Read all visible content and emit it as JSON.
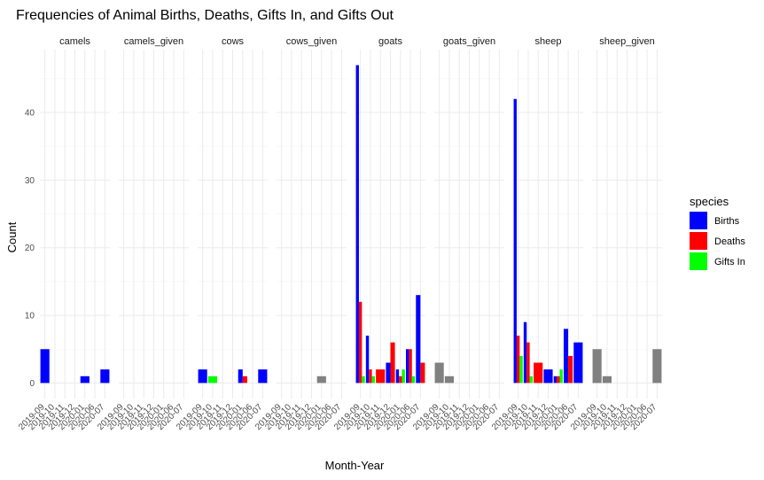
{
  "chart_data": {
    "type": "bar",
    "title": "Frequencies of Animal Births, Deaths, Gifts In, and Gifts Out",
    "xlabel": "Month-Year",
    "ylabel": "Count",
    "ylim": [
      0,
      47
    ],
    "yticks": [
      0,
      10,
      20,
      30,
      40
    ],
    "grid": true,
    "legend_position": "right",
    "x_categories": [
      "2019-09",
      "2019-10",
      "2019-11",
      "2019-12",
      "2020-01",
      "2020-06",
      "2020-07"
    ],
    "facets": [
      "camels",
      "camels_given",
      "cows",
      "cows_given",
      "goats",
      "goats_given",
      "sheep",
      "sheep_given"
    ],
    "legend": {
      "title": "species",
      "entries": [
        {
          "label": "Births",
          "color": "#0000ff"
        },
        {
          "label": "Deaths",
          "color": "#ff0000"
        },
        {
          "label": "Gifts In",
          "color": "#00ff00"
        }
      ]
    },
    "gifts_out_color": "#808080",
    "bars": [
      {
        "facet": "camels",
        "x": "2019-09",
        "type": "Births",
        "value": 5
      },
      {
        "facet": "camels",
        "x": "2020-01",
        "type": "Births",
        "value": 1
      },
      {
        "facet": "camels",
        "x": "2020-07",
        "type": "Births",
        "value": 2
      },
      {
        "facet": "cows",
        "x": "2019-09",
        "type": "Births",
        "value": 2
      },
      {
        "facet": "cows",
        "x": "2019-10",
        "type": "Gifts In",
        "value": 1
      },
      {
        "facet": "cows",
        "x": "2020-01",
        "type": "Births",
        "value": 2
      },
      {
        "facet": "cows",
        "x": "2020-01",
        "type": "Deaths",
        "value": 1
      },
      {
        "facet": "cows",
        "x": "2020-07",
        "type": "Births",
        "value": 2
      },
      {
        "facet": "cows_given",
        "x": "2020-01",
        "type": "Gifts Out",
        "value": 1
      },
      {
        "facet": "goats",
        "x": "2019-09",
        "type": "Births",
        "value": 47
      },
      {
        "facet": "goats",
        "x": "2019-09",
        "type": "Deaths",
        "value": 12
      },
      {
        "facet": "goats",
        "x": "2019-09",
        "type": "Gifts In",
        "value": 1
      },
      {
        "facet": "goats",
        "x": "2019-10",
        "type": "Births",
        "value": 7
      },
      {
        "facet": "goats",
        "x": "2019-10",
        "type": "Deaths",
        "value": 2
      },
      {
        "facet": "goats",
        "x": "2019-10",
        "type": "Gifts In",
        "value": 1
      },
      {
        "facet": "goats",
        "x": "2019-11",
        "type": "Deaths",
        "value": 2
      },
      {
        "facet": "goats",
        "x": "2019-12",
        "type": "Births",
        "value": 3
      },
      {
        "facet": "goats",
        "x": "2019-12",
        "type": "Deaths",
        "value": 6
      },
      {
        "facet": "goats",
        "x": "2020-01",
        "type": "Births",
        "value": 2
      },
      {
        "facet": "goats",
        "x": "2020-01",
        "type": "Deaths",
        "value": 1
      },
      {
        "facet": "goats",
        "x": "2020-01",
        "type": "Gifts In",
        "value": 2
      },
      {
        "facet": "goats",
        "x": "2020-06",
        "type": "Births",
        "value": 5
      },
      {
        "facet": "goats",
        "x": "2020-06",
        "type": "Deaths",
        "value": 5
      },
      {
        "facet": "goats",
        "x": "2020-06",
        "type": "Gifts In",
        "value": 1
      },
      {
        "facet": "goats",
        "x": "2020-07",
        "type": "Births",
        "value": 13
      },
      {
        "facet": "goats",
        "x": "2020-07",
        "type": "Deaths",
        "value": 3
      },
      {
        "facet": "goats_given",
        "x": "2019-09",
        "type": "Gifts Out",
        "value": 3
      },
      {
        "facet": "goats_given",
        "x": "2019-10",
        "type": "Gifts Out",
        "value": 1
      },
      {
        "facet": "sheep",
        "x": "2019-09",
        "type": "Births",
        "value": 42
      },
      {
        "facet": "sheep",
        "x": "2019-09",
        "type": "Deaths",
        "value": 7
      },
      {
        "facet": "sheep",
        "x": "2019-09",
        "type": "Gifts In",
        "value": 4
      },
      {
        "facet": "sheep",
        "x": "2019-10",
        "type": "Births",
        "value": 9
      },
      {
        "facet": "sheep",
        "x": "2019-10",
        "type": "Deaths",
        "value": 6
      },
      {
        "facet": "sheep",
        "x": "2019-10",
        "type": "Gifts In",
        "value": 1
      },
      {
        "facet": "sheep",
        "x": "2019-11",
        "type": "Deaths",
        "value": 3
      },
      {
        "facet": "sheep",
        "x": "2019-12",
        "type": "Births",
        "value": 2
      },
      {
        "facet": "sheep",
        "x": "2020-01",
        "type": "Births",
        "value": 1
      },
      {
        "facet": "sheep",
        "x": "2020-01",
        "type": "Deaths",
        "value": 1
      },
      {
        "facet": "sheep",
        "x": "2020-01",
        "type": "Gifts In",
        "value": 2
      },
      {
        "facet": "sheep",
        "x": "2020-06",
        "type": "Births",
        "value": 8
      },
      {
        "facet": "sheep",
        "x": "2020-06",
        "type": "Deaths",
        "value": 4
      },
      {
        "facet": "sheep",
        "x": "2020-07",
        "type": "Births",
        "value": 6
      },
      {
        "facet": "sheep_given",
        "x": "2019-09",
        "type": "Gifts Out",
        "value": 5
      },
      {
        "facet": "sheep_given",
        "x": "2019-10",
        "type": "Gifts Out",
        "value": 1
      },
      {
        "facet": "sheep_given",
        "x": "2020-07",
        "type": "Gifts Out",
        "value": 5
      }
    ]
  }
}
